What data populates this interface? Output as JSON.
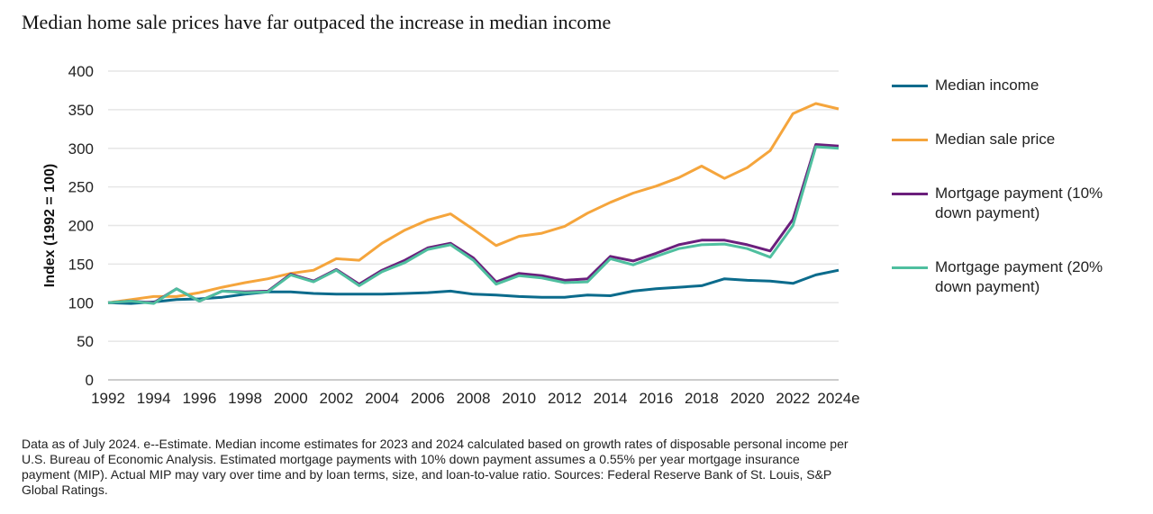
{
  "chart_data": {
    "type": "line",
    "title": "Median home sale prices have far outpaced the increase in median income",
    "ylabel": "Index  (1992 = 100)",
    "xlabel": "",
    "ylim": [
      0,
      400
    ],
    "yticks": [
      "0",
      "50",
      "100",
      "150",
      "200",
      "250",
      "300",
      "350",
      "400"
    ],
    "x": [
      "1992",
      "1993",
      "1994",
      "1995",
      "1996",
      "1997",
      "1998",
      "1999",
      "2000",
      "2001",
      "2002",
      "2003",
      "2004",
      "2005",
      "2006",
      "2007",
      "2008",
      "2009",
      "2010",
      "2011",
      "2012",
      "2013",
      "2014",
      "2015",
      "2016",
      "2017",
      "2018",
      "2019",
      "2020",
      "2021",
      "2022",
      "2023",
      "2024e"
    ],
    "xticks": [
      "1992",
      "1994",
      "1996",
      "1998",
      "2000",
      "2002",
      "2004",
      "2006",
      "2008",
      "2010",
      "2012",
      "2014",
      "2016",
      "2018",
      "2020",
      "2022",
      "2024e"
    ],
    "grid": true,
    "legend": "right",
    "series": [
      {
        "name": "Median income",
        "color": "#0b6b8c",
        "values": [
          100,
          99,
          101,
          104,
          105,
          107,
          111,
          114,
          114,
          112,
          111,
          111,
          111,
          112,
          113,
          115,
          111,
          110,
          108,
          107,
          107,
          110,
          109,
          115,
          118,
          120,
          122,
          131,
          129,
          128,
          125,
          136,
          142
        ]
      },
      {
        "name": "Median sale price",
        "color": "#f5a53c",
        "values": [
          100,
          104,
          108,
          108,
          113,
          120,
          126,
          131,
          138,
          142,
          157,
          155,
          177,
          194,
          207,
          215,
          195,
          174,
          186,
          190,
          199,
          216,
          230,
          242,
          251,
          262,
          277,
          261,
          275,
          297,
          345,
          358,
          351
        ]
      },
      {
        "name": "Mortgage payment (10% down payment)",
        "color": "#6b1f7c",
        "values": [
          100,
          102,
          100,
          118,
          102,
          115,
          114,
          115,
          137,
          128,
          143,
          124,
          142,
          155,
          171,
          177,
          158,
          127,
          138,
          135,
          129,
          131,
          160,
          154,
          164,
          175,
          181,
          181,
          175,
          167,
          208,
          305,
          303
        ]
      },
      {
        "name": "Mortgage payment (20% down payment)",
        "color": "#4fbf9f",
        "values": [
          100,
          102,
          99,
          118,
          102,
          115,
          113,
          114,
          136,
          127,
          142,
          122,
          140,
          152,
          169,
          175,
          155,
          124,
          135,
          132,
          126,
          127,
          157,
          149,
          160,
          170,
          175,
          176,
          170,
          159,
          200,
          302,
          300
        ]
      }
    ]
  },
  "footnote": "Data as of July 2024. e--Estimate. Median income estimates for 2023 and 2024 calculated based on growth rates of disposable personal income per U.S. Bureau of Economic Analysis. Estimated mortgage payments with 10% down payment assumes a 0.55% per year mortgage insurance payment (MIP). Actual MIP may vary over time and by loan terms, size, and loan-to-value ratio. Sources: Federal Reserve Bank of St. Louis, S&P Global Ratings."
}
